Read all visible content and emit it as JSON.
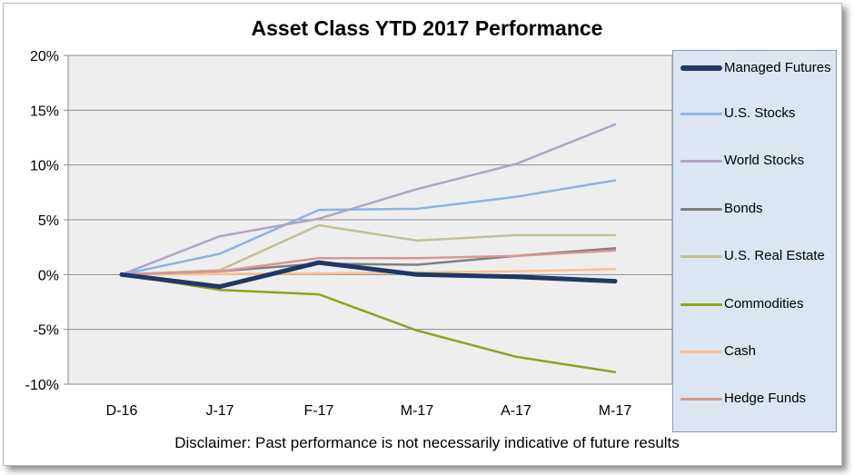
{
  "chart_data": {
    "type": "line",
    "title": "Asset Class YTD 2017 Performance",
    "categories": [
      "D-16",
      "J-17",
      "F-17",
      "M-17",
      "A-17",
      "M-17"
    ],
    "ylim": [
      -10,
      20
    ],
    "yticks": [
      "-10%",
      "-5%",
      "0%",
      "5%",
      "10%",
      "15%",
      "20%"
    ],
    "ytick_values": [
      -10,
      -5,
      0,
      5,
      10,
      15,
      20
    ],
    "grid": true,
    "legend_position": "right",
    "series": [
      {
        "name": "Managed Futures",
        "color": "#1f3864",
        "width": 5,
        "values": [
          0,
          -1.1,
          1.1,
          0.0,
          -0.2,
          -0.6
        ]
      },
      {
        "name": "U.S. Stocks",
        "color": "#8db3e2",
        "width": 2.5,
        "values": [
          0,
          1.9,
          5.9,
          6.0,
          7.1,
          8.6
        ]
      },
      {
        "name": "World Stocks",
        "color": "#b3a2c7",
        "width": 2.5,
        "values": [
          0,
          3.5,
          5.1,
          7.8,
          10.1,
          13.7
        ]
      },
      {
        "name": "Bonds",
        "color": "#7f7f7f",
        "width": 2.5,
        "values": [
          0,
          0.3,
          1.0,
          0.9,
          1.7,
          2.4
        ]
      },
      {
        "name": "U.S. Real Estate",
        "color": "#c4bd97",
        "width": 2.5,
        "values": [
          0,
          0.4,
          4.5,
          3.1,
          3.6,
          3.6
        ]
      },
      {
        "name": "Commodities",
        "color": "#8ea21f",
        "width": 2.5,
        "values": [
          0,
          -1.4,
          -1.8,
          -5.1,
          -7.5,
          -8.9
        ]
      },
      {
        "name": "Cash",
        "color": "#fac090",
        "width": 2.5,
        "values": [
          0,
          0.05,
          0.1,
          0.2,
          0.3,
          0.5
        ]
      },
      {
        "name": "Hedge Funds",
        "color": "#d99694",
        "width": 2.5,
        "values": [
          0,
          0.3,
          1.5,
          1.5,
          1.7,
          2.2
        ]
      }
    ]
  },
  "disclaimer": "Disclaimer: Past performance is not necessarily indicative of future results"
}
